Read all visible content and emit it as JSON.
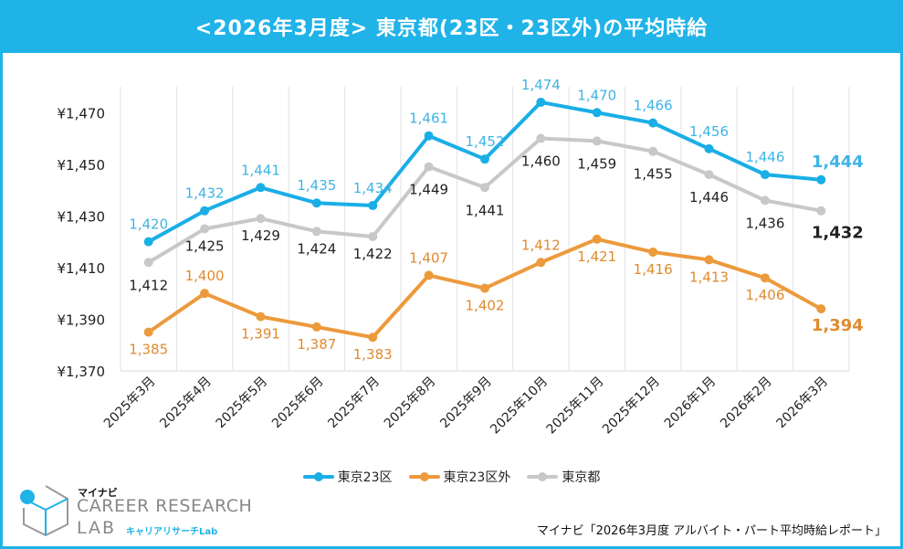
{
  "title": "<2026年3月度>  東京都(23区・23区外)の平均時給",
  "source": "マイナビ「2026年3月度 アルバイト・パート平均時給レポート」",
  "brand": {
    "top": "マイナビ",
    "main": "CAREER RESEARCH",
    "lab": "LAB",
    "kana": "キャリアリサーチLab"
  },
  "colors": {
    "frame": "#1fb3e8",
    "tokyo23": "#1aaee6",
    "outside23": "#ec9a3c",
    "tokyo": "#c8c8c8"
  },
  "chart_data": {
    "type": "line",
    "categories": [
      "2025年3月",
      "2025年4月",
      "2025年5月",
      "2025年6月",
      "2025年7月",
      "2025年8月",
      "2025年9月",
      "2025年10月",
      "2025年11月",
      "2025年12月",
      "2026年1月",
      "2026年2月",
      "2026年3月"
    ],
    "yticks": [
      "¥1,470",
      "¥1,450",
      "¥1,430",
      "¥1,410",
      "¥1,390",
      "¥1,370"
    ],
    "ytick_values": [
      1470,
      1450,
      1430,
      1410,
      1390,
      1370
    ],
    "ylim": [
      1370,
      1480
    ],
    "grid": "vertical",
    "legend_position": "bottom",
    "series": [
      {
        "name": "東京23区",
        "color": "#1aaee6",
        "label_color": "#3db4e6",
        "values": [
          1420,
          1432,
          1441,
          1435,
          1434,
          1461,
          1452,
          1474,
          1470,
          1466,
          1456,
          1446,
          1444
        ],
        "labels": [
          "1,420",
          "1,432",
          "1,441",
          "1,435",
          "1,434",
          "1,461",
          "1,452",
          "1,474",
          "1,470",
          "1,466",
          "1,456",
          "1,446",
          "1,444"
        ]
      },
      {
        "name": "東京23区外",
        "color": "#ec9a3c",
        "label_color": "#e08a2e",
        "values": [
          1385,
          1400,
          1391,
          1387,
          1383,
          1407,
          1402,
          1412,
          1421,
          1416,
          1413,
          1406,
          1394
        ],
        "labels": [
          "1,385",
          "1,400",
          "1,391",
          "1,387",
          "1,383",
          "1,407",
          "1,402",
          "1,412",
          "1,421",
          "1,416",
          "1,413",
          "1,406",
          "1,394"
        ]
      },
      {
        "name": "東京都",
        "color": "#c8c8c8",
        "label_color": "#222222",
        "values": [
          1412,
          1425,
          1429,
          1424,
          1422,
          1449,
          1441,
          1460,
          1459,
          1455,
          1446,
          1436,
          1432
        ],
        "labels": [
          "1,412",
          "1,425",
          "1,429",
          "1,424",
          "1,422",
          "1,449",
          "1,441",
          "1,460",
          "1,459",
          "1,455",
          "1,446",
          "1,436",
          "1,432"
        ]
      }
    ]
  }
}
